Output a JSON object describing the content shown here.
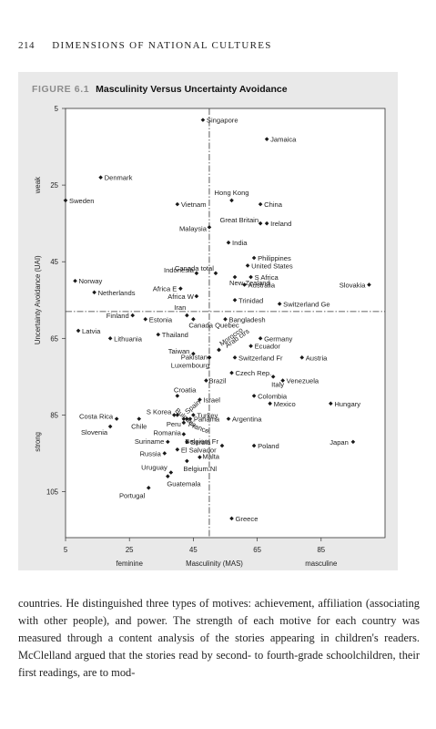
{
  "running_head": {
    "page_number": "214",
    "title": "DIMENSIONS OF NATIONAL CULTURES"
  },
  "figure": {
    "number": "FIGURE 6.1",
    "title": "Masculinity Versus Uncertainty Avoidance"
  },
  "chart_data": {
    "type": "scatter",
    "title": "Masculinity Versus Uncertainty Avoidance",
    "xlabel": "Masculinity (MAS)",
    "ylabel": "Uncertainty Avoidance (UAI)",
    "x_ticks": [
      "5",
      "25",
      "45",
      "65",
      "85"
    ],
    "y_ticks": [
      "5",
      "25",
      "45",
      "65",
      "85",
      "105"
    ],
    "x_side_labels": [
      "feminine",
      "masculine"
    ],
    "y_side_labels": [
      "weak",
      "strong"
    ],
    "xlim": [
      5,
      105
    ],
    "ylim": [
      5,
      117
    ],
    "y_inverted": true,
    "reference_lines": {
      "vertical_x": 50,
      "horizontal_y": 58
    },
    "points": [
      {
        "label": "Singapore",
        "x": 48,
        "y": 8
      },
      {
        "label": "Jamaica",
        "x": 68,
        "y": 13
      },
      {
        "label": "Denmark",
        "x": 16,
        "y": 23
      },
      {
        "label": "Sweden",
        "x": 5,
        "y": 29
      },
      {
        "label": "Vietnam",
        "x": 40,
        "y": 30
      },
      {
        "label": "Hong Kong",
        "x": 57,
        "y": 29
      },
      {
        "label": "China",
        "x": 66,
        "y": 30
      },
      {
        "label": "Great Britain",
        "x": 66,
        "y": 35
      },
      {
        "label": "Ireland",
        "x": 68,
        "y": 35
      },
      {
        "label": "Malaysia",
        "x": 50,
        "y": 36
      },
      {
        "label": "India",
        "x": 56,
        "y": 40
      },
      {
        "label": "Philippines",
        "x": 64,
        "y": 44
      },
      {
        "label": "Canada total",
        "x": 52,
        "y": 48
      },
      {
        "label": "United States",
        "x": 62,
        "y": 46
      },
      {
        "label": "Indonesia",
        "x": 46,
        "y": 48
      },
      {
        "label": "S Africa",
        "x": 63,
        "y": 49
      },
      {
        "label": "Norway",
        "x": 8,
        "y": 50
      },
      {
        "label": "New Zealand",
        "x": 58,
        "y": 49
      },
      {
        "label": "Australia",
        "x": 61,
        "y": 51
      },
      {
        "label": "Slovakia",
        "x": 100,
        "y": 51
      },
      {
        "label": "Africa E",
        "x": 41,
        "y": 52
      },
      {
        "label": "Netherlands",
        "x": 14,
        "y": 53
      },
      {
        "label": "Africa W",
        "x": 46,
        "y": 54
      },
      {
        "label": "Trinidad",
        "x": 58,
        "y": 55
      },
      {
        "label": "Switzerland Ge",
        "x": 72,
        "y": 56
      },
      {
        "label": "Iran",
        "x": 43,
        "y": 59
      },
      {
        "label": "Finland",
        "x": 26,
        "y": 59
      },
      {
        "label": "Estonia",
        "x": 30,
        "y": 60
      },
      {
        "label": "Bangladesh",
        "x": 55,
        "y": 60
      },
      {
        "label": "Canada Quebec",
        "x": 45,
        "y": 60
      },
      {
        "label": "Latvia",
        "x": 9,
        "y": 63
      },
      {
        "label": "Lithuania",
        "x": 19,
        "y": 65
      },
      {
        "label": "Thailand",
        "x": 34,
        "y": 64
      },
      {
        "label": "Morocco",
        "x": 53,
        "y": 68
      },
      {
        "label": "Arab ctrs",
        "x": 53,
        "y": 68
      },
      {
        "label": "Germany",
        "x": 66,
        "y": 65
      },
      {
        "label": "Ecuador",
        "x": 63,
        "y": 67
      },
      {
        "label": "Taiwan",
        "x": 45,
        "y": 69
      },
      {
        "label": "Pakistan",
        "x": 50,
        "y": 70
      },
      {
        "label": "Switzerland Fr",
        "x": 58,
        "y": 70
      },
      {
        "label": "Austria",
        "x": 79,
        "y": 70
      },
      {
        "label": "Luxembourg",
        "x": 50,
        "y": 70
      },
      {
        "label": "Czech Rep.",
        "x": 57,
        "y": 74
      },
      {
        "label": "Brazil",
        "x": 49,
        "y": 76
      },
      {
        "label": "Italy",
        "x": 70,
        "y": 75
      },
      {
        "label": "Venezuela",
        "x": 73,
        "y": 76
      },
      {
        "label": "Croatia",
        "x": 40,
        "y": 80
      },
      {
        "label": "Israel",
        "x": 47,
        "y": 81
      },
      {
        "label": "Colombia",
        "x": 64,
        "y": 80
      },
      {
        "label": "Mexico",
        "x": 69,
        "y": 82
      },
      {
        "label": "Hungary",
        "x": 88,
        "y": 82
      },
      {
        "label": "Bulgaria",
        "x": 40,
        "y": 85
      },
      {
        "label": "Spain",
        "x": 42,
        "y": 86
      },
      {
        "label": "S Korea",
        "x": 39,
        "y": 85
      },
      {
        "label": "Turkey",
        "x": 45,
        "y": 85
      },
      {
        "label": "Costa Rica",
        "x": 21,
        "y": 86
      },
      {
        "label": "Peru",
        "x": 42,
        "y": 87
      },
      {
        "label": "Panama",
        "x": 44,
        "y": 86
      },
      {
        "label": "France",
        "x": 43,
        "y": 86
      },
      {
        "label": "Argentina",
        "x": 56,
        "y": 86
      },
      {
        "label": "Chile",
        "x": 28,
        "y": 86
      },
      {
        "label": "Slovenia",
        "x": 19,
        "y": 88
      },
      {
        "label": "Romania",
        "x": 42,
        "y": 90
      },
      {
        "label": "Suriname",
        "x": 37,
        "y": 92
      },
      {
        "label": "Serbia",
        "x": 43,
        "y": 92
      },
      {
        "label": "Belgium Fr",
        "x": 54,
        "y": 93
      },
      {
        "label": "Poland",
        "x": 64,
        "y": 93
      },
      {
        "label": "Japan",
        "x": 95,
        "y": 92
      },
      {
        "label": "Russia",
        "x": 36,
        "y": 95
      },
      {
        "label": "El Salvador",
        "x": 40,
        "y": 94
      },
      {
        "label": "Malta",
        "x": 47,
        "y": 96
      },
      {
        "label": "Belgium Nl",
        "x": 43,
        "y": 97
      },
      {
        "label": "Uruguay",
        "x": 38,
        "y": 100
      },
      {
        "label": "Guatemala",
        "x": 37,
        "y": 101
      },
      {
        "label": "Portugal",
        "x": 31,
        "y": 104
      },
      {
        "label": "Greece",
        "x": 57,
        "y": 112
      }
    ]
  },
  "body_text": [
    "countries. He distinguished three types of motives: achievement, affiliation",
    "(associating with other people), and power. The strength of each motive",
    "for each country was measured through a content analysis of the stories",
    "appearing in children's readers. McClelland argued that the stories read",
    "by second- to fourth-grade schoolchildren, their first readings, are to mod-"
  ]
}
